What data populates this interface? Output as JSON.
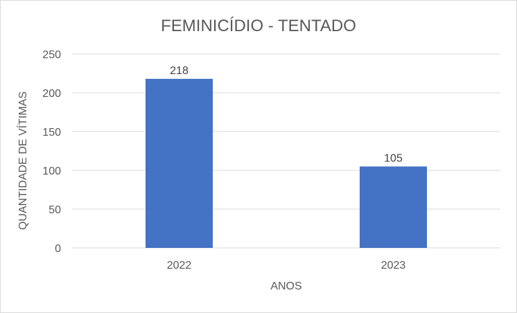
{
  "chart_data": {
    "type": "bar",
    "title": "FEMINICÍDIO - TENTADO",
    "xlabel": "ANOS",
    "ylabel": "QUANTIDADE DE VÍTIMAS",
    "categories": [
      "2022",
      "2023"
    ],
    "values": [
      218,
      105
    ],
    "data_labels": [
      "218",
      "105"
    ],
    "ylim": [
      0,
      250
    ],
    "yticks": [
      "0",
      "50",
      "100",
      "150",
      "200",
      "250"
    ],
    "grid": true,
    "legend": "none",
    "colors": {
      "bar": "#4472C4",
      "grid": "#d9d9d9",
      "text": "#595959"
    }
  }
}
